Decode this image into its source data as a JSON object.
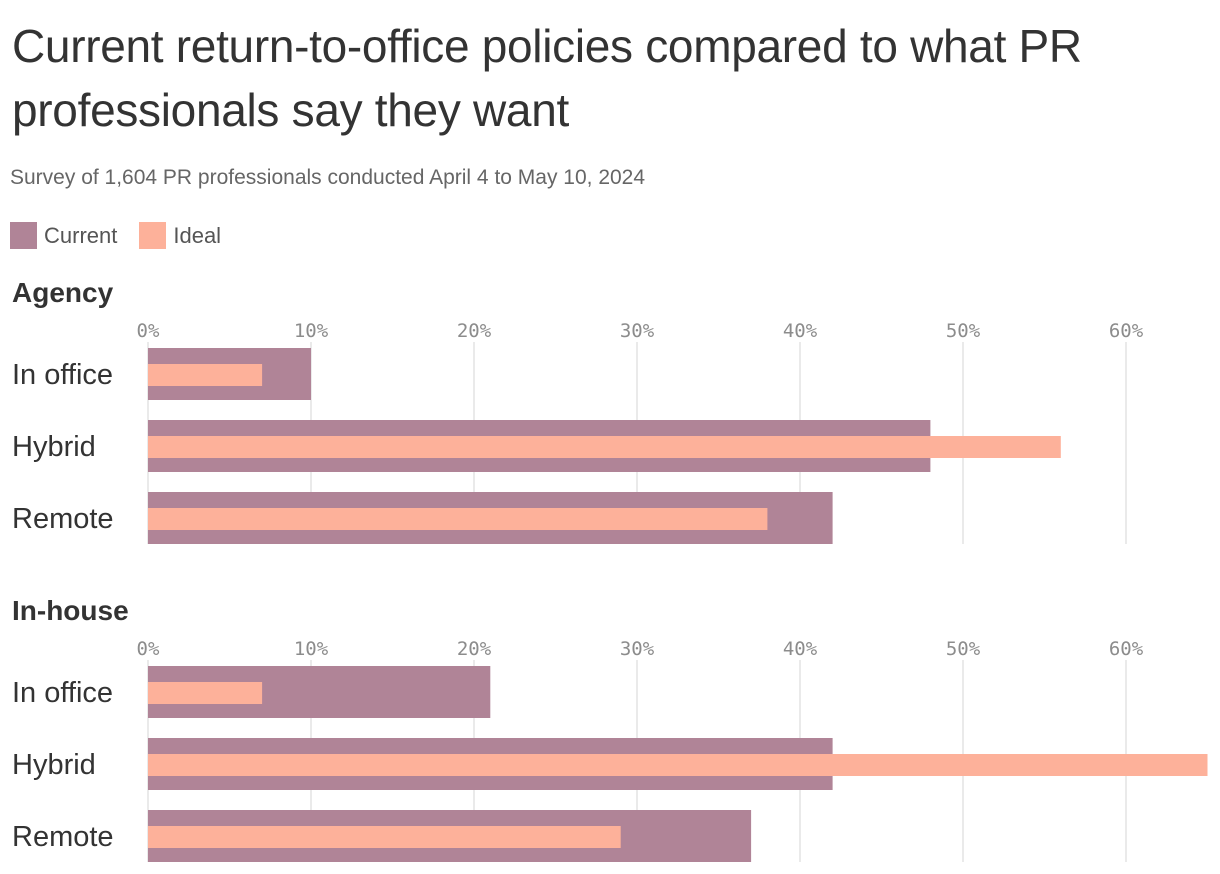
{
  "title": "Current return-to-office policies compared to what PR professionals say they want",
  "subtitle": "Survey of 1,604 PR professionals conducted April 4 to May 10, 2024",
  "colors": {
    "current": "#b08497",
    "ideal": "#fdb19a"
  },
  "legend": [
    {
      "key": "current",
      "label": "Current"
    },
    {
      "key": "ideal",
      "label": "Ideal"
    }
  ],
  "chart_data": [
    {
      "type": "bar",
      "orientation": "horizontal",
      "panel_title": "Agency",
      "categories": [
        "In office",
        "Hybrid",
        "Remote"
      ],
      "series": [
        {
          "name": "Current",
          "values": [
            10,
            48,
            42
          ]
        },
        {
          "name": "Ideal",
          "values": [
            7,
            56,
            38
          ]
        }
      ],
      "xlim": [
        0,
        65
      ],
      "ticks": [
        0,
        10,
        20,
        30,
        40,
        50,
        60
      ],
      "tick_labels": [
        "0%",
        "10%",
        "20%",
        "30%",
        "40%",
        "50%",
        "60%"
      ],
      "grid": true,
      "legend": "top-left"
    },
    {
      "type": "bar",
      "orientation": "horizontal",
      "panel_title": "In-house",
      "categories": [
        "In office",
        "Hybrid",
        "Remote"
      ],
      "series": [
        {
          "name": "Current",
          "values": [
            21,
            42,
            37
          ]
        },
        {
          "name": "Ideal",
          "values": [
            7,
            65,
            29
          ]
        }
      ],
      "xlim": [
        0,
        65
      ],
      "ticks": [
        0,
        10,
        20,
        30,
        40,
        50,
        60
      ],
      "tick_labels": [
        "0%",
        "10%",
        "20%",
        "30%",
        "40%",
        "50%",
        "60%"
      ],
      "grid": true,
      "legend": "top-left"
    }
  ]
}
